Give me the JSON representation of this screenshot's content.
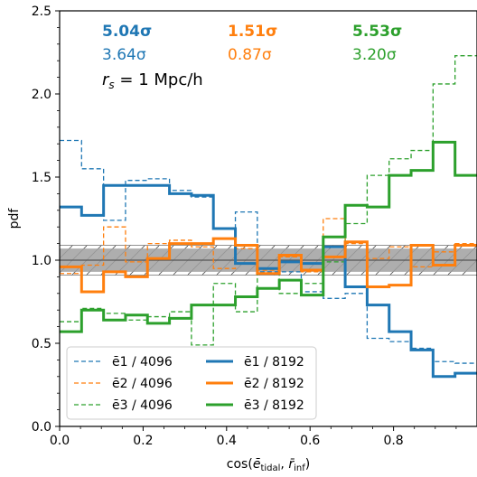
{
  "chart_data": {
    "type": "histogram-step",
    "xlabel": "cos(ē_tidal, r̄_inf)",
    "ylabel": "pdf",
    "xlim": [
      0.0,
      1.0
    ],
    "ylim": [
      0.0,
      2.5
    ],
    "xticks": [
      "0.0",
      "0.2",
      "0.4",
      "0.6",
      "0.8"
    ],
    "xtick_values": [
      0.0,
      0.2,
      0.4,
      0.6,
      0.8
    ],
    "yticks": [
      "0.0",
      "0.5",
      "1.0",
      "1.5",
      "2.0",
      "2.5"
    ],
    "ytick_values": [
      0.0,
      0.5,
      1.0,
      1.5,
      2.0,
      2.5
    ],
    "bin_edges": [
      0.0,
      0.0526,
      0.1053,
      0.1579,
      0.2105,
      0.2632,
      0.3158,
      0.3684,
      0.4211,
      0.4737,
      0.5263,
      0.5789,
      0.6316,
      0.6842,
      0.7368,
      0.7895,
      0.8421,
      0.8947,
      0.9474,
      1.0
    ],
    "series": [
      {
        "name": "e1 / 4096",
        "color": "#1f77b4",
        "style": "dashed",
        "values": [
          1.72,
          1.55,
          1.24,
          1.48,
          1.49,
          1.42,
          1.38,
          1.19,
          1.29,
          0.93,
          0.93,
          0.81,
          0.77,
          0.8,
          0.53,
          0.51,
          0.47,
          0.39,
          0.38
        ]
      },
      {
        "name": "e2 / 4096",
        "color": "#ff7f0e",
        "style": "dashed",
        "values": [
          0.92,
          0.97,
          1.2,
          0.99,
          1.1,
          1.12,
          1.08,
          0.95,
          1.07,
          0.94,
          1.02,
          0.93,
          1.25,
          1.1,
          1.01,
          1.08,
          0.96,
          1.05,
          1.1
        ]
      },
      {
        "name": "e3 / 4096",
        "color": "#2ca02c",
        "style": "dashed",
        "values": [
          0.63,
          0.71,
          0.68,
          0.64,
          0.66,
          0.69,
          0.49,
          0.86,
          0.69,
          0.92,
          0.8,
          0.86,
          0.99,
          1.22,
          1.51,
          1.61,
          1.66,
          2.06,
          2.23
        ]
      },
      {
        "name": "e1 / 8192",
        "color": "#1f77b4",
        "style": "solid",
        "values": [
          1.32,
          1.27,
          1.45,
          1.45,
          1.45,
          1.4,
          1.39,
          1.19,
          0.98,
          0.95,
          0.99,
          0.98,
          1.08,
          0.84,
          0.73,
          0.57,
          0.46,
          0.3,
          0.32
        ]
      },
      {
        "name": "e2 / 8192",
        "color": "#ff7f0e",
        "style": "solid",
        "values": [
          0.96,
          0.81,
          0.93,
          0.9,
          1.01,
          1.1,
          1.1,
          1.13,
          1.09,
          0.92,
          1.03,
          0.94,
          1.02,
          1.11,
          0.84,
          0.85,
          1.09,
          0.97,
          1.09
        ]
      },
      {
        "name": "e3 / 8192",
        "color": "#2ca02c",
        "style": "solid",
        "values": [
          0.57,
          0.7,
          0.64,
          0.67,
          0.62,
          0.65,
          0.73,
          0.73,
          0.78,
          0.83,
          0.88,
          0.79,
          1.14,
          1.33,
          1.32,
          1.51,
          1.54,
          1.71,
          1.51
        ]
      }
    ],
    "uniform_band": {
      "center": 1.0,
      "inner": [
        0.93,
        1.07
      ],
      "outer": [
        0.91,
        1.09
      ],
      "color": "#a0a0a0"
    }
  },
  "annotations": {
    "sigma_top": [
      {
        "text": "5.04σ",
        "color": "#1f77b4",
        "bold": true
      },
      {
        "text": "1.51σ",
        "color": "#ff7f0e",
        "bold": true
      },
      {
        "text": "5.53σ",
        "color": "#2ca02c",
        "bold": true
      }
    ],
    "sigma_bottom": [
      {
        "text": "3.64σ",
        "color": "#1f77b4"
      },
      {
        "text": "0.87σ",
        "color": "#ff7f0e"
      },
      {
        "text": "3.20σ",
        "color": "#2ca02c"
      }
    ],
    "rs_label": "r_s = 1 Mpc/h"
  },
  "legend": {
    "position": "lower-left",
    "items": [
      {
        "label": "ē1 / 4096",
        "color": "#1f77b4",
        "style": "dashed"
      },
      {
        "label": "ē1 / 8192",
        "color": "#1f77b4",
        "style": "solid"
      },
      {
        "label": "ē2 / 4096",
        "color": "#ff7f0e",
        "style": "dashed"
      },
      {
        "label": "ē2 / 8192",
        "color": "#ff7f0e",
        "style": "solid"
      },
      {
        "label": "ē3 / 4096",
        "color": "#2ca02c",
        "style": "dashed"
      },
      {
        "label": "ē3 / 8192",
        "color": "#2ca02c",
        "style": "solid"
      }
    ]
  }
}
